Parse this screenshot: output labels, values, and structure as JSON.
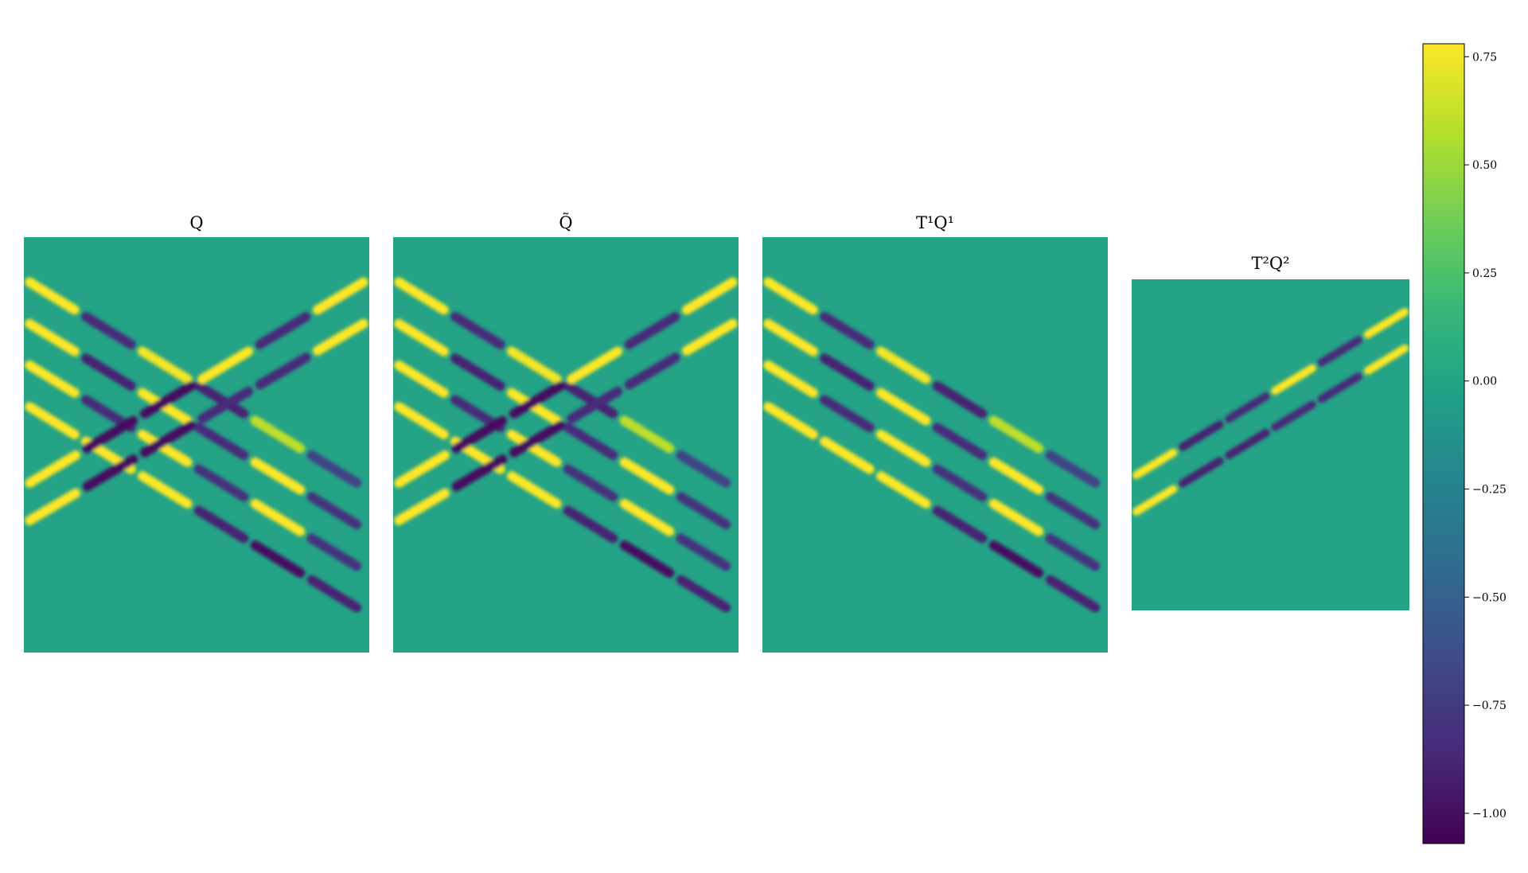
{
  "colorbar": {
    "min": -1.07,
    "max": 0.78,
    "ticks": [
      {
        "value": 0.75,
        "label": "0.75"
      },
      {
        "value": 0.5,
        "label": "0.50"
      },
      {
        "value": 0.25,
        "label": "0.25"
      },
      {
        "value": 0.0,
        "label": "0.00"
      },
      {
        "value": -0.25,
        "label": "−0.25"
      },
      {
        "value": -0.5,
        "label": "−0.50"
      },
      {
        "value": -0.75,
        "label": "−0.75"
      },
      {
        "value": -1.0,
        "label": "−1.00"
      }
    ],
    "colormap": [
      "#440154",
      "#482878",
      "#3e4989",
      "#31688e",
      "#26828e",
      "#1f9e89",
      "#35b779",
      "#6ece58",
      "#b5de2b",
      "#fde725"
    ]
  },
  "chart_data": [
    {
      "type": "heatmap",
      "title": "Q",
      "axes_visible": false,
      "background_value": 0.0,
      "bands": [
        {
          "direction": "down",
          "values": [
            0.78,
            -0.85,
            0.75,
            -0.9,
            0.6,
            -0.7
          ]
        },
        {
          "direction": "down",
          "values": [
            0.78,
            -0.9,
            0.78,
            -0.85,
            0.78,
            -0.8
          ]
        },
        {
          "direction": "down",
          "values": [
            0.78,
            -0.85,
            0.8,
            -0.8,
            0.78,
            -0.8
          ]
        },
        {
          "direction": "down",
          "values": [
            0.78,
            0.8,
            0.78,
            -0.9,
            -1.0,
            -0.9
          ]
        },
        {
          "direction": "up",
          "values": [
            0.78,
            -1.0,
            -1.0,
            0.78,
            -0.85,
            0.78
          ]
        },
        {
          "direction": "up",
          "values": [
            0.78,
            -1.0,
            -1.0,
            -0.85,
            -0.85,
            0.78
          ]
        }
      ]
    },
    {
      "type": "heatmap",
      "title": "Q̃",
      "axes_visible": false,
      "background_value": 0.0,
      "bands": [
        {
          "direction": "down",
          "values": [
            0.78,
            -0.85,
            0.75,
            -0.9,
            0.6,
            -0.7
          ]
        },
        {
          "direction": "down",
          "values": [
            0.78,
            -0.9,
            0.78,
            -0.85,
            0.78,
            -0.8
          ]
        },
        {
          "direction": "down",
          "values": [
            0.78,
            -0.85,
            0.8,
            -0.8,
            0.78,
            -0.8
          ]
        },
        {
          "direction": "down",
          "values": [
            0.78,
            0.8,
            0.78,
            -0.9,
            -1.0,
            -0.9
          ]
        },
        {
          "direction": "up",
          "values": [
            0.78,
            -1.0,
            -1.0,
            0.78,
            -0.85,
            0.78
          ]
        },
        {
          "direction": "up",
          "values": [
            0.78,
            -1.0,
            -1.0,
            -0.85,
            -0.85,
            0.78
          ]
        }
      ]
    },
    {
      "type": "heatmap",
      "title": "T¹Q¹",
      "axes_visible": false,
      "background_value": 0.0,
      "bands": [
        {
          "direction": "down",
          "values": [
            0.78,
            -0.85,
            0.75,
            -0.9,
            0.6,
            -0.7
          ]
        },
        {
          "direction": "down",
          "values": [
            0.78,
            -0.9,
            0.78,
            -0.85,
            0.78,
            -0.8
          ]
        },
        {
          "direction": "down",
          "values": [
            0.78,
            -0.85,
            0.8,
            -0.8,
            0.78,
            -0.8
          ]
        },
        {
          "direction": "down",
          "values": [
            0.78,
            0.8,
            0.78,
            -0.9,
            -1.0,
            -0.9
          ]
        }
      ]
    },
    {
      "type": "heatmap",
      "title": "T²Q²",
      "axes_visible": false,
      "background_value": 0.0,
      "bands": [
        {
          "direction": "up",
          "values": [
            0.78,
            -0.9,
            -0.85,
            0.78,
            -0.85,
            0.78
          ]
        },
        {
          "direction": "up",
          "values": [
            0.78,
            -0.9,
            -0.9,
            -0.85,
            -0.85,
            0.78
          ]
        }
      ]
    }
  ]
}
